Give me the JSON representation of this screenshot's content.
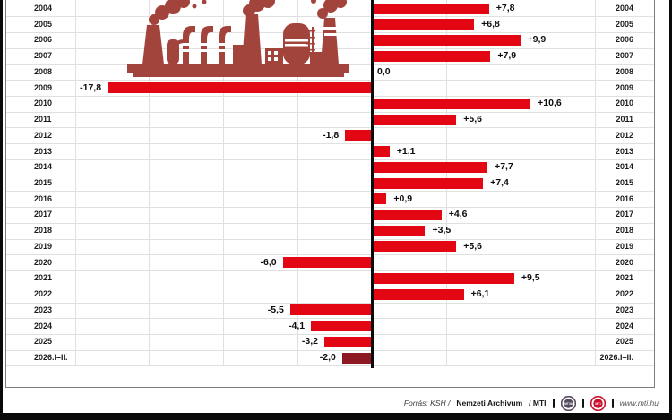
{
  "chart_data": {
    "type": "bar",
    "orientation": "horizontal-diverging",
    "unit": "%",
    "categories": [
      "2004",
      "2005",
      "2006",
      "2007",
      "2008",
      "2009",
      "2010",
      "2011",
      "2012",
      "2013",
      "2014",
      "2015",
      "2016",
      "2017",
      "2018",
      "2019",
      "2020",
      "2021",
      "2022",
      "2023",
      "2024",
      "2025",
      "2026.I–II."
    ],
    "values": [
      7.8,
      6.8,
      9.9,
      7.9,
      0.0,
      -17.8,
      10.6,
      5.6,
      -1.8,
      1.1,
      7.7,
      7.4,
      0.9,
      4.6,
      3.5,
      5.6,
      -6.0,
      9.5,
      6.1,
      -5.5,
      -4.1,
      -3.2,
      -2.0
    ],
    "value_labels": [
      "+7,8",
      "+6,8",
      "+9,9",
      "+7,9",
      "0,0",
      "-17,8",
      "+10,6",
      "+5,6",
      "-1,8",
      "+1,1",
      "+7,7",
      "+7,4",
      "+0,9",
      "+4,6",
      "+3,5",
      "+5,6",
      "-6,0",
      "+9,5",
      "+6,1",
      "-5,5",
      "-4,1",
      "-3,2",
      "-2,0"
    ],
    "highlight_last_bar": true,
    "xlim": [
      -20,
      15
    ],
    "gridline_step": 5,
    "grid": true,
    "legend": "none",
    "year_labels_on_both_sides": true
  },
  "footer": {
    "source_prefix": "Forrás: KSH /",
    "source_bold": "Nemzeti Archivum",
    "source_suffix": "/ MTI",
    "logo1_text": "MTVA",
    "logo2_text": "MTI",
    "website": "www.mti.hu"
  },
  "colors": {
    "bar_red": "#e30613",
    "bar_dark": "#8d1a23",
    "factory": "#a3443c",
    "grid": "#e0e0e0",
    "frame": "#7d7d7d",
    "ink": "#0a0a0a",
    "logo1_ring": "#564a5e",
    "logo2_ring": "#c8102e"
  }
}
